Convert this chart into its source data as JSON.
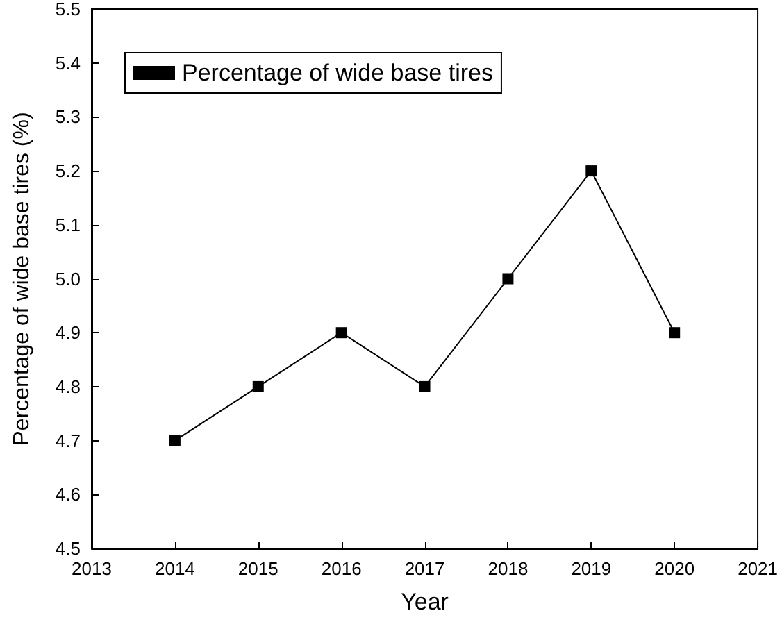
{
  "chart_data": {
    "type": "line",
    "xlabel": "Year",
    "ylabel": "Percentage of wide base tires (%)",
    "x": [
      2014,
      2015,
      2016,
      2017,
      2018,
      2019,
      2020
    ],
    "series": [
      {
        "name": "Percentage of wide base tires",
        "color": "#000000",
        "values": [
          4.7,
          4.8,
          4.9,
          4.8,
          5.0,
          5.2,
          4.9
        ]
      }
    ],
    "xlim": [
      2013,
      2021
    ],
    "xticks": [
      2013,
      2014,
      2015,
      2016,
      2017,
      2018,
      2019,
      2020,
      2021
    ],
    "ylim": [
      4.5,
      5.5
    ],
    "yticks": [
      4.5,
      4.6,
      4.7,
      4.8,
      4.9,
      {
        "value": 5,
        "label": "5.0"
      },
      5.1,
      5.2,
      5.3,
      5.4,
      5.5
    ],
    "grid": false,
    "legend": "top left",
    "marker": "square",
    "line_style": "solid"
  }
}
